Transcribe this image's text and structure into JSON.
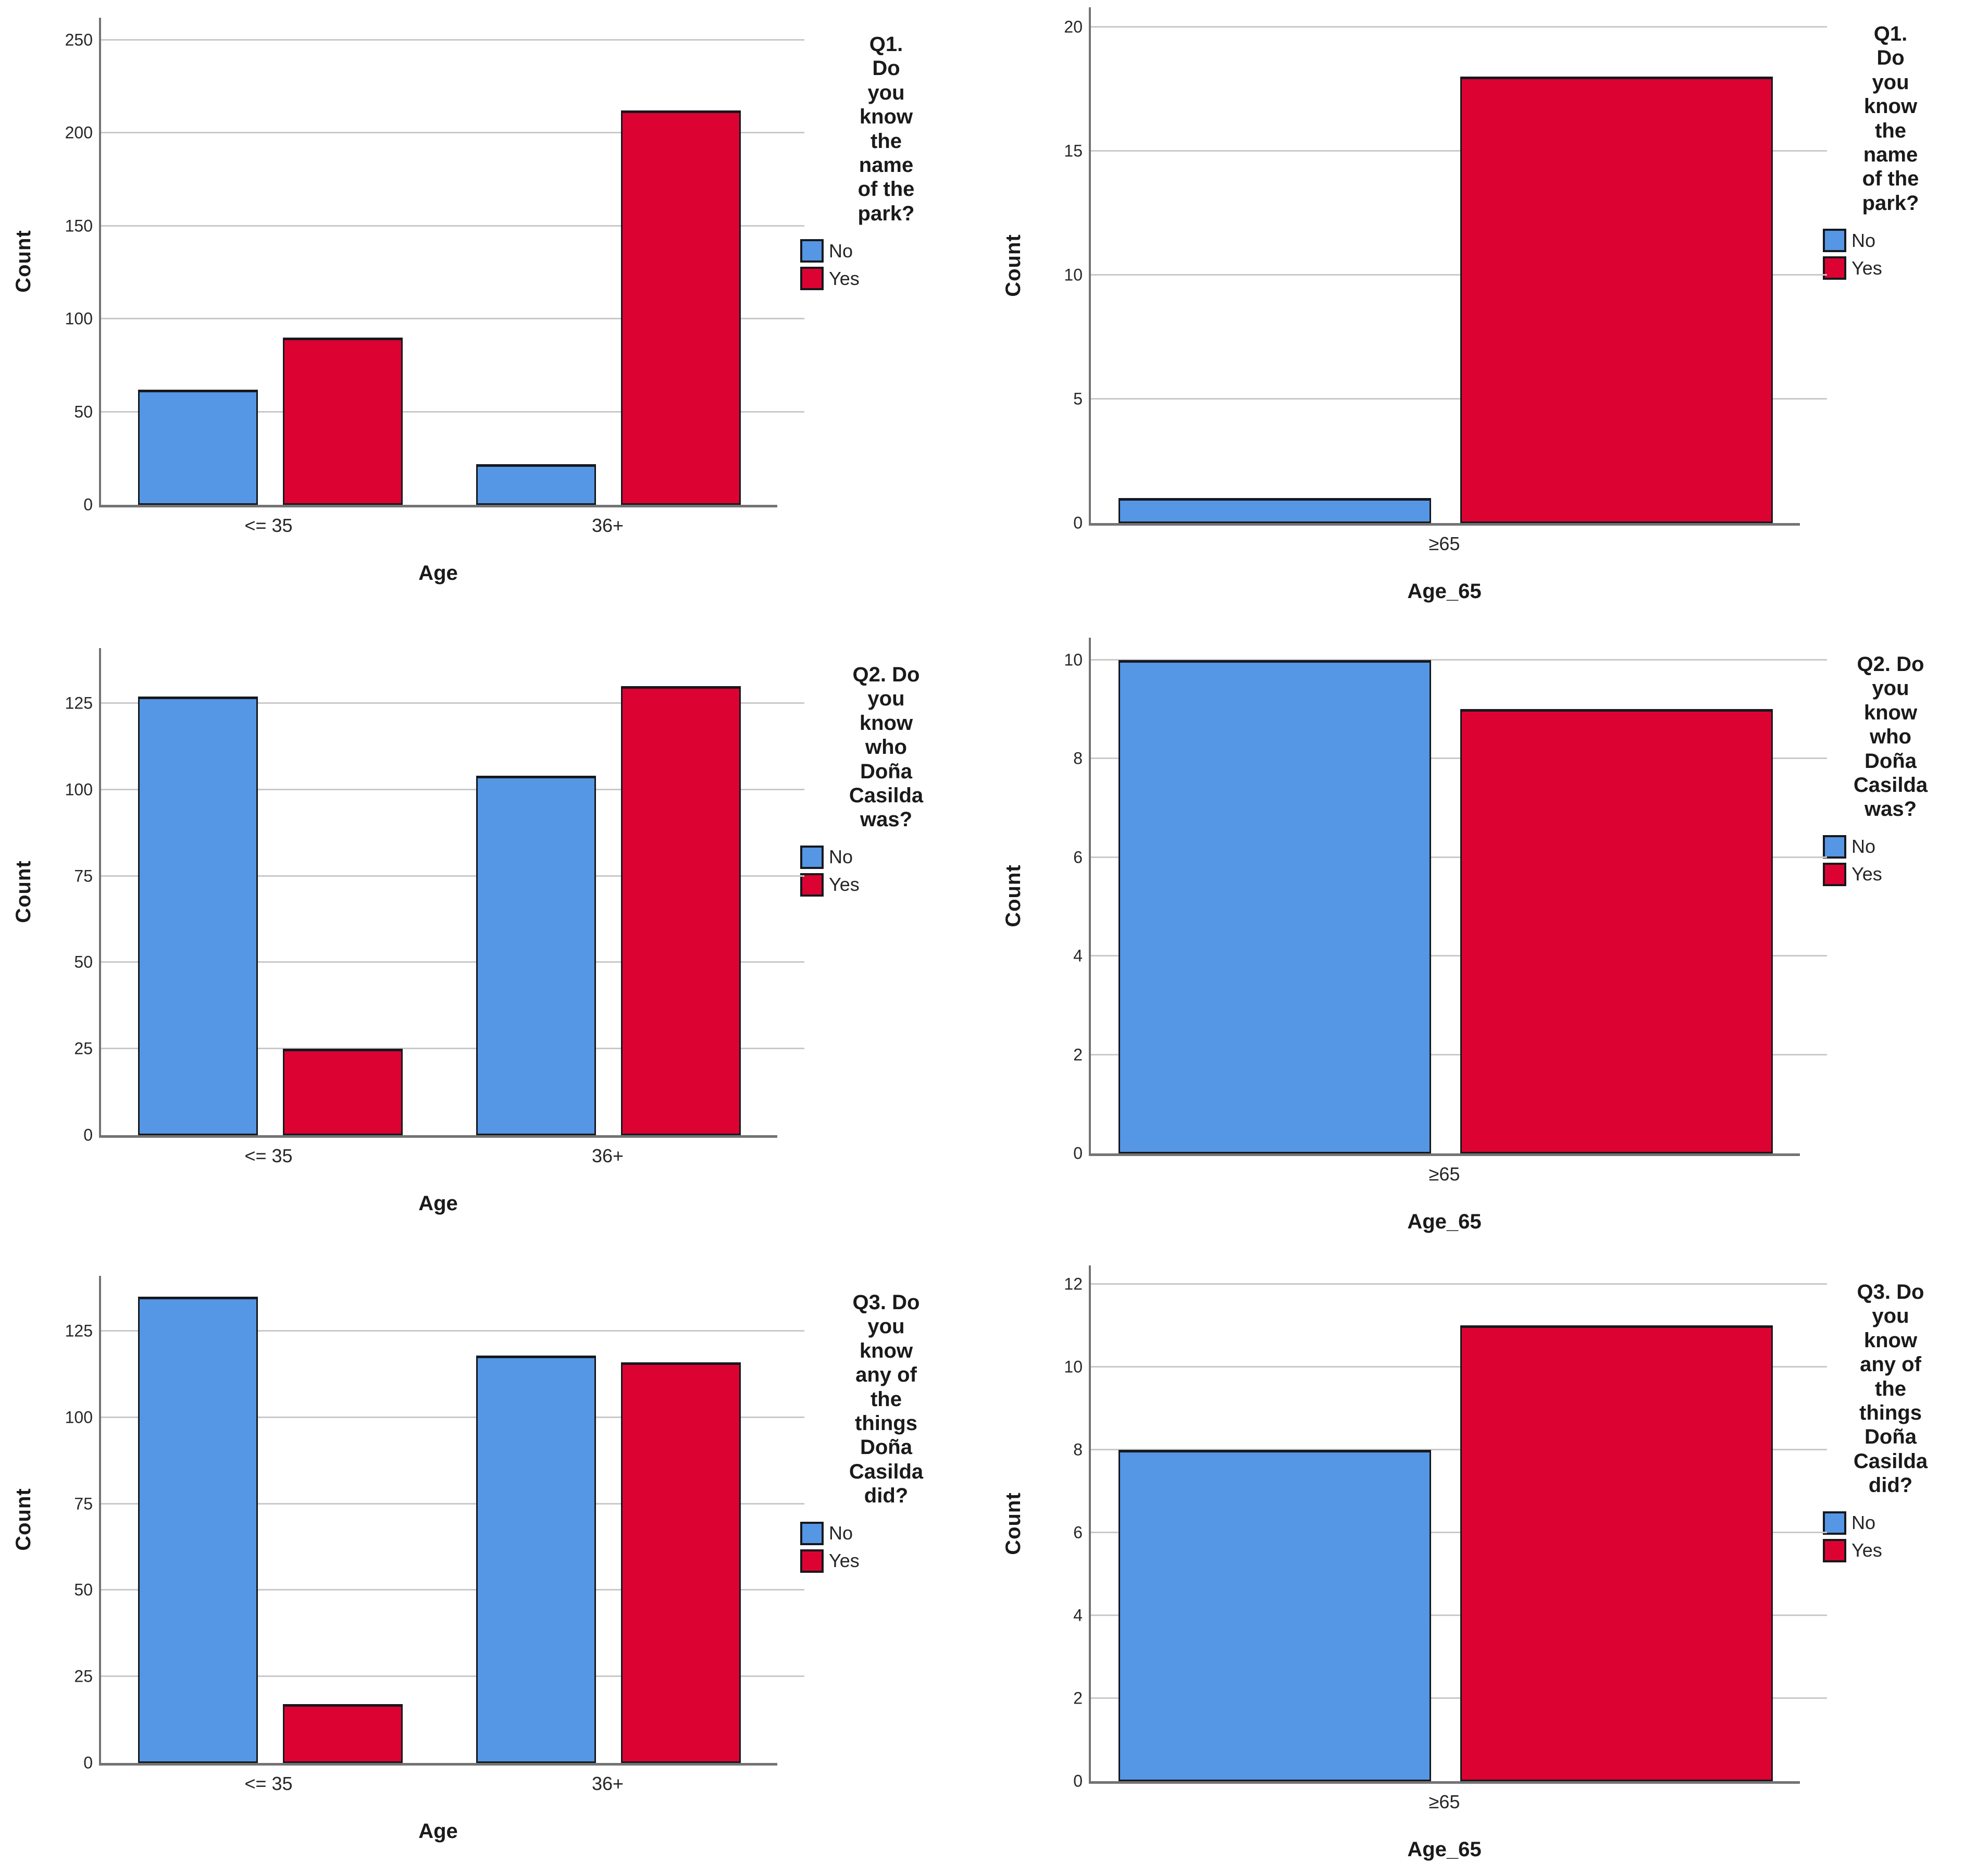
{
  "page": {
    "background": "#ffffff"
  },
  "colors": {
    "no": "#5596e5",
    "yes": "#dc0333",
    "bar_border": "#16181d",
    "gridline": "#c9c9c9",
    "axis": "#737373"
  },
  "legend_labels": {
    "no": "No",
    "yes": "Yes"
  },
  "chart_data": [
    {
      "type": "bar",
      "title": "Q1. Do you know the name of the park? by Age",
      "ylabel": "Count",
      "xlabel": "Age",
      "categories": [
        "<= 35",
        "36+"
      ],
      "series": [
        {
          "name": "No",
          "color": "#5596e5",
          "values": [
            62,
            22
          ]
        },
        {
          "name": "Yes",
          "color": "#dc0333",
          "values": [
            90,
            212
          ]
        }
      ],
      "ticks": [
        0,
        50,
        100,
        150,
        200,
        250
      ],
      "ylim": [
        0,
        262
      ],
      "grid": true,
      "legend": {
        "position": "right",
        "title": "Q1.\nDo\nyou\nknow\nthe\nname\nof the\npark?"
      }
    },
    {
      "type": "bar",
      "title": "Q1. Do you know the name of the park? by Age_65",
      "ylabel": "Count",
      "xlabel": "Age_65",
      "categories": [
        "≥65"
      ],
      "series": [
        {
          "name": "No",
          "color": "#5596e5",
          "values": [
            1
          ]
        },
        {
          "name": "Yes",
          "color": "#dc0333",
          "values": [
            18
          ]
        }
      ],
      "ticks": [
        0,
        5,
        10,
        15,
        20
      ],
      "ylim": [
        0,
        20.8
      ],
      "grid": true,
      "legend": {
        "position": "right",
        "title": "Q1.\nDo\nyou\nknow\nthe\nname\nof the\npark?"
      }
    },
    {
      "type": "bar",
      "title": "Q2. Do you know who Doña Casilda was? by Age",
      "ylabel": "Count",
      "xlabel": "Age",
      "categories": [
        "<= 35",
        "36+"
      ],
      "series": [
        {
          "name": "No",
          "color": "#5596e5",
          "values": [
            127,
            104
          ]
        },
        {
          "name": "Yes",
          "color": "#dc0333",
          "values": [
            25,
            130
          ]
        }
      ],
      "ticks": [
        0,
        25,
        50,
        75,
        100,
        125
      ],
      "ylim": [
        0,
        141
      ],
      "grid": true,
      "legend": {
        "position": "right",
        "title": "Q2. Do\nyou\nknow\nwho\nDoña\nCasilda\nwas?"
      }
    },
    {
      "type": "bar",
      "title": "Q2. Do you know who Doña Casilda was? by Age_65",
      "ylabel": "Count",
      "xlabel": "Age_65",
      "categories": [
        "≥65"
      ],
      "series": [
        {
          "name": "No",
          "color": "#5596e5",
          "values": [
            10
          ]
        },
        {
          "name": "Yes",
          "color": "#dc0333",
          "values": [
            9
          ]
        }
      ],
      "ticks": [
        0,
        2,
        4,
        6,
        8,
        10
      ],
      "ylim": [
        0,
        10.45
      ],
      "grid": true,
      "legend": {
        "position": "right",
        "title": "Q2. Do\nyou\nknow\nwho\nDoña\nCasilda\nwas?"
      }
    },
    {
      "type": "bar",
      "title": "Q3. Do you know any of the things Doña Casilda did? by Age",
      "ylabel": "Count",
      "xlabel": "Age",
      "categories": [
        "<= 35",
        "36+"
      ],
      "series": [
        {
          "name": "No",
          "color": "#5596e5",
          "values": [
            135,
            118
          ]
        },
        {
          "name": "Yes",
          "color": "#dc0333",
          "values": [
            17,
            116
          ]
        }
      ],
      "ticks": [
        0,
        25,
        50,
        75,
        100,
        125
      ],
      "ylim": [
        0,
        141
      ],
      "grid": true,
      "legend": {
        "position": "right",
        "title": "Q3. Do\nyou\nknow\nany of\nthe\nthings\nDoña\nCasilda\ndid?"
      }
    },
    {
      "type": "bar",
      "title": "Q3. Do you know any of the things Doña Casilda did? by Age_65",
      "ylabel": "Count",
      "xlabel": "Age_65",
      "categories": [
        "≥65"
      ],
      "series": [
        {
          "name": "No",
          "color": "#5596e5",
          "values": [
            8
          ]
        },
        {
          "name": "Yes",
          "color": "#dc0333",
          "values": [
            11
          ]
        }
      ],
      "ticks": [
        0,
        2,
        4,
        6,
        8,
        10,
        12
      ],
      "ylim": [
        0,
        12.45
      ],
      "grid": true,
      "legend": {
        "position": "right",
        "title": "Q3. Do\nyou\nknow\nany of\nthe\nthings\nDoña\nCasilda\ndid?"
      }
    }
  ]
}
